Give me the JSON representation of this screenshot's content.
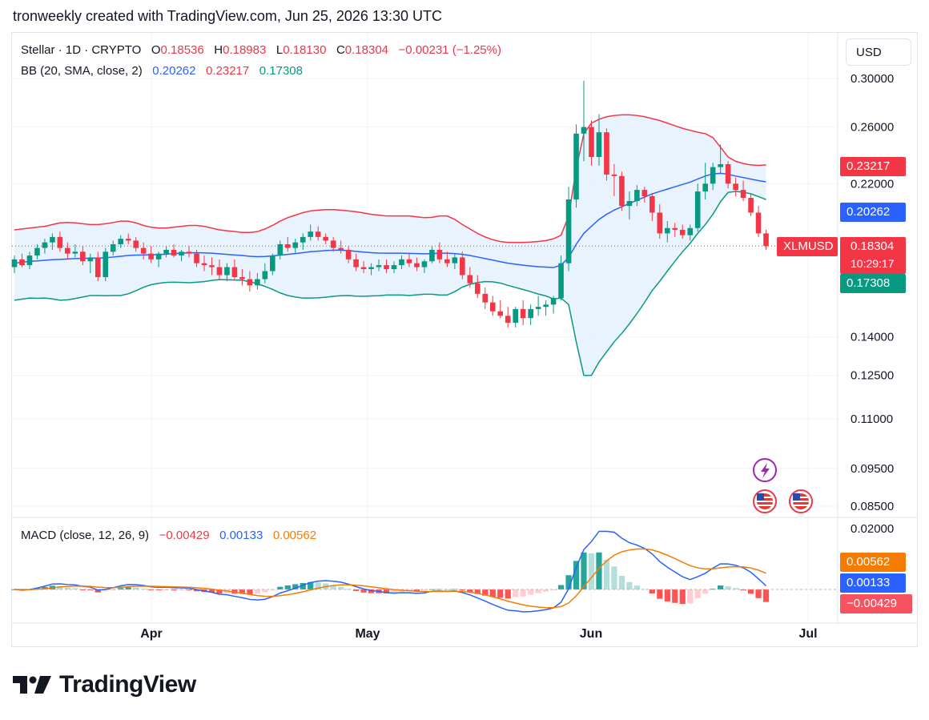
{
  "header": {
    "text": "tronweekly created with TradingView.com, Jun 25, 2026 13:30 UTC"
  },
  "legend": {
    "symbol": "Stellar · 1D · CRYPTO",
    "o_label": "O",
    "o_value": "0.18536",
    "h_label": "H",
    "h_value": "0.18983",
    "l_label": "L",
    "l_value": "0.18130",
    "c_label": "C",
    "c_value": "0.18304",
    "change": "−0.00231 (−1.25%)",
    "bb_label": "BB (20, SMA, close, 2)",
    "bb_basis": "0.20262",
    "bb_upper": "0.23217",
    "bb_lower": "0.17308",
    "macd_label": "MACD (close, 12, 26, 9)",
    "macd_hist": "−0.00429",
    "macd_line": "0.00133",
    "macd_signal": "0.00562"
  },
  "currency_button": "USD",
  "badges": {
    "bb_upper": "0.23217",
    "bb_basis": "0.20262",
    "symbol": "XLMUSD",
    "price": "0.18304",
    "countdown": "10:29:17",
    "bb_lower": "0.17308",
    "macd_signal": "0.00562",
    "macd_line": "0.00133",
    "macd_hist": "−0.00429"
  },
  "colors": {
    "up": "#089981",
    "down": "#f23645",
    "bb_upper": "#f23645",
    "bb_basis": "#2962ff",
    "bb_lower": "#089981",
    "bb_fill": "#e3f0fd",
    "macd_line": "#2962ff",
    "macd_signal": "#f57c00"
  },
  "logo": {
    "text": "TradingView"
  },
  "chart_data": {
    "type": "candlestick",
    "interval": "1D",
    "price_axis_ticks": [
      "0.30000",
      "0.26000",
      "0.22000",
      "0.14000",
      "0.12500",
      "0.11000",
      "0.09500",
      "0.08500"
    ],
    "macd_axis_ticks": [
      "0.02000"
    ],
    "x_ticks": [
      "Apr",
      "May",
      "Jun",
      "Jul"
    ],
    "price_range": [
      0.082,
      0.31
    ],
    "macd_range": [
      -0.008,
      0.021
    ],
    "candles": [
      [
        0.172,
        0.178,
        0.169,
        0.176
      ],
      [
        0.176,
        0.179,
        0.172,
        0.173
      ],
      [
        0.173,
        0.18,
        0.171,
        0.178
      ],
      [
        0.178,
        0.184,
        0.176,
        0.182
      ],
      [
        0.182,
        0.187,
        0.179,
        0.185
      ],
      [
        0.185,
        0.19,
        0.181,
        0.188
      ],
      [
        0.188,
        0.191,
        0.18,
        0.182
      ],
      [
        0.182,
        0.185,
        0.176,
        0.179
      ],
      [
        0.179,
        0.184,
        0.177,
        0.18
      ],
      [
        0.18,
        0.183,
        0.173,
        0.175
      ],
      [
        0.175,
        0.179,
        0.169,
        0.177
      ],
      [
        0.177,
        0.18,
        0.165,
        0.167
      ],
      [
        0.167,
        0.182,
        0.165,
        0.18
      ],
      [
        0.18,
        0.186,
        0.178,
        0.184
      ],
      [
        0.184,
        0.189,
        0.182,
        0.187
      ],
      [
        0.187,
        0.19,
        0.184,
        0.186
      ],
      [
        0.186,
        0.188,
        0.18,
        0.182
      ],
      [
        0.182,
        0.185,
        0.176,
        0.179
      ],
      [
        0.179,
        0.183,
        0.174,
        0.176
      ],
      [
        0.176,
        0.18,
        0.172,
        0.179
      ],
      [
        0.179,
        0.183,
        0.177,
        0.181
      ],
      [
        0.181,
        0.184,
        0.177,
        0.178
      ],
      [
        0.178,
        0.181,
        0.175,
        0.18
      ],
      [
        0.18,
        0.183,
        0.177,
        0.179
      ],
      [
        0.179,
        0.181,
        0.172,
        0.174
      ],
      [
        0.174,
        0.178,
        0.17,
        0.173
      ],
      [
        0.173,
        0.177,
        0.168,
        0.172
      ],
      [
        0.172,
        0.176,
        0.166,
        0.168
      ],
      [
        0.168,
        0.174,
        0.165,
        0.172
      ],
      [
        0.172,
        0.176,
        0.166,
        0.167
      ],
      [
        0.167,
        0.171,
        0.163,
        0.166
      ],
      [
        0.166,
        0.17,
        0.16,
        0.163
      ],
      [
        0.163,
        0.169,
        0.161,
        0.166
      ],
      [
        0.166,
        0.174,
        0.164,
        0.17
      ],
      [
        0.17,
        0.179,
        0.168,
        0.178
      ],
      [
        0.178,
        0.186,
        0.176,
        0.184
      ],
      [
        0.184,
        0.188,
        0.18,
        0.182
      ],
      [
        0.182,
        0.187,
        0.179,
        0.185
      ],
      [
        0.185,
        0.19,
        0.181,
        0.188
      ],
      [
        0.188,
        0.195,
        0.186,
        0.191
      ],
      [
        0.191,
        0.194,
        0.186,
        0.188
      ],
      [
        0.188,
        0.19,
        0.184,
        0.186
      ],
      [
        0.186,
        0.188,
        0.18,
        0.182
      ],
      [
        0.182,
        0.186,
        0.179,
        0.181
      ],
      [
        0.181,
        0.183,
        0.174,
        0.176
      ],
      [
        0.176,
        0.179,
        0.17,
        0.172
      ],
      [
        0.172,
        0.175,
        0.169,
        0.171
      ],
      [
        0.171,
        0.174,
        0.168,
        0.172
      ],
      [
        0.172,
        0.176,
        0.17,
        0.173
      ],
      [
        0.173,
        0.176,
        0.169,
        0.171
      ],
      [
        0.171,
        0.175,
        0.169,
        0.173
      ],
      [
        0.173,
        0.178,
        0.171,
        0.176
      ],
      [
        0.176,
        0.179,
        0.172,
        0.174
      ],
      [
        0.174,
        0.177,
        0.17,
        0.172
      ],
      [
        0.172,
        0.176,
        0.169,
        0.175
      ],
      [
        0.175,
        0.183,
        0.174,
        0.181
      ],
      [
        0.181,
        0.185,
        0.174,
        0.176
      ],
      [
        0.176,
        0.18,
        0.172,
        0.174
      ],
      [
        0.174,
        0.179,
        0.171,
        0.177
      ],
      [
        0.177,
        0.18,
        0.166,
        0.168
      ],
      [
        0.168,
        0.172,
        0.162,
        0.164
      ],
      [
        0.164,
        0.168,
        0.157,
        0.159
      ],
      [
        0.159,
        0.162,
        0.152,
        0.155
      ],
      [
        0.155,
        0.158,
        0.149,
        0.151
      ],
      [
        0.151,
        0.156,
        0.148,
        0.149
      ],
      [
        0.149,
        0.153,
        0.144,
        0.146
      ],
      [
        0.146,
        0.153,
        0.144,
        0.152
      ],
      [
        0.152,
        0.156,
        0.145,
        0.148
      ],
      [
        0.148,
        0.154,
        0.145,
        0.152
      ],
      [
        0.152,
        0.158,
        0.149,
        0.153
      ],
      [
        0.153,
        0.156,
        0.149,
        0.154
      ],
      [
        0.154,
        0.158,
        0.15,
        0.157
      ],
      [
        0.157,
        0.178,
        0.156,
        0.174
      ],
      [
        0.174,
        0.218,
        0.17,
        0.21
      ],
      [
        0.21,
        0.262,
        0.205,
        0.255
      ],
      [
        0.255,
        0.298,
        0.235,
        0.26
      ],
      [
        0.26,
        0.265,
        0.232,
        0.238
      ],
      [
        0.238,
        0.27,
        0.232,
        0.256
      ],
      [
        0.256,
        0.259,
        0.222,
        0.226
      ],
      [
        0.226,
        0.233,
        0.212,
        0.225
      ],
      [
        0.225,
        0.228,
        0.203,
        0.206
      ],
      [
        0.206,
        0.215,
        0.198,
        0.209
      ],
      [
        0.209,
        0.219,
        0.206,
        0.216
      ],
      [
        0.216,
        0.218,
        0.208,
        0.212
      ],
      [
        0.212,
        0.214,
        0.197,
        0.202
      ],
      [
        0.202,
        0.207,
        0.187,
        0.19
      ],
      [
        0.19,
        0.197,
        0.185,
        0.193
      ],
      [
        0.193,
        0.196,
        0.188,
        0.192
      ],
      [
        0.192,
        0.195,
        0.187,
        0.189
      ],
      [
        0.189,
        0.195,
        0.186,
        0.193
      ],
      [
        0.193,
        0.22,
        0.191,
        0.215
      ],
      [
        0.215,
        0.234,
        0.21,
        0.22
      ],
      [
        0.22,
        0.234,
        0.216,
        0.231
      ],
      [
        0.231,
        0.247,
        0.227,
        0.233
      ],
      [
        0.233,
        0.235,
        0.217,
        0.22
      ],
      [
        0.22,
        0.224,
        0.212,
        0.216
      ],
      [
        0.216,
        0.222,
        0.209,
        0.211
      ],
      [
        0.211,
        0.214,
        0.2,
        0.202
      ],
      [
        0.202,
        0.206,
        0.188,
        0.19
      ],
      [
        0.19,
        0.192,
        0.181,
        0.183
      ]
    ],
    "bb_upper": [
      0.192,
      0.1925,
      0.193,
      0.1935,
      0.194,
      0.195,
      0.196,
      0.1962,
      0.196,
      0.1955,
      0.195,
      0.195,
      0.1955,
      0.1962,
      0.197,
      0.197,
      0.196,
      0.1945,
      0.1935,
      0.193,
      0.193,
      0.1935,
      0.194,
      0.1945,
      0.1945,
      0.194,
      0.193,
      0.192,
      0.1915,
      0.191,
      0.1905,
      0.1905,
      0.191,
      0.1925,
      0.1945,
      0.197,
      0.199,
      0.2005,
      0.202,
      0.203,
      0.2035,
      0.2038,
      0.2038,
      0.2035,
      0.203,
      0.2025,
      0.2018,
      0.201,
      0.2005,
      0.2,
      0.2,
      0.2,
      0.2,
      0.1995,
      0.199,
      0.1992,
      0.2,
      0.2,
      0.198,
      0.195,
      0.1925,
      0.19,
      0.188,
      0.1865,
      0.1855,
      0.185,
      0.185,
      0.185,
      0.1852,
      0.1855,
      0.186,
      0.187,
      0.189,
      0.2,
      0.23,
      0.255,
      0.263,
      0.266,
      0.268,
      0.269,
      0.2695,
      0.2695,
      0.269,
      0.268,
      0.2665,
      0.265,
      0.263,
      0.261,
      0.259,
      0.2575,
      0.256,
      0.255,
      0.252,
      0.245,
      0.238,
      0.235,
      0.2335,
      0.2325,
      0.2322,
      0.2325
    ],
    "bb_basis": [
      0.174,
      0.1745,
      0.175,
      0.1752,
      0.1755,
      0.1758,
      0.176,
      0.1762,
      0.1764,
      0.1765,
      0.1766,
      0.1766,
      0.1768,
      0.1772,
      0.1776,
      0.178,
      0.1782,
      0.1783,
      0.1784,
      0.1785,
      0.1787,
      0.179,
      0.1792,
      0.1794,
      0.1795,
      0.1794,
      0.1792,
      0.1789,
      0.1786,
      0.1783,
      0.178,
      0.1776,
      0.1774,
      0.1775,
      0.1778,
      0.1782,
      0.1786,
      0.179,
      0.1795,
      0.18,
      0.1803,
      0.1806,
      0.1808,
      0.1808,
      0.1806,
      0.1802,
      0.1798,
      0.1795,
      0.1793,
      0.1792,
      0.1792,
      0.1792,
      0.1791,
      0.179,
      0.1789,
      0.179,
      0.1792,
      0.1792,
      0.179,
      0.1786,
      0.178,
      0.1772,
      0.1764,
      0.1756,
      0.1748,
      0.174,
      0.1735,
      0.173,
      0.1726,
      0.1722,
      0.172,
      0.1718,
      0.173,
      0.177,
      0.184,
      0.19,
      0.194,
      0.198,
      0.201,
      0.2035,
      0.2055,
      0.2075,
      0.2095,
      0.2115,
      0.2135,
      0.215,
      0.2165,
      0.218,
      0.2195,
      0.221,
      0.223,
      0.225,
      0.2265,
      0.2268,
      0.2262,
      0.225,
      0.224,
      0.223,
      0.222,
      0.2212
    ]
  }
}
